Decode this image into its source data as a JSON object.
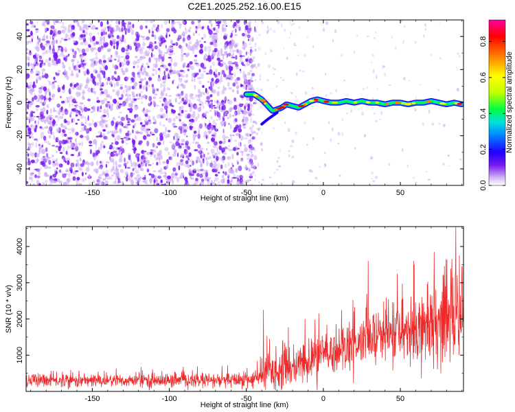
{
  "figure_title": "C2E1.2025.252.16.00.E15",
  "colors": {
    "spectrogram_scatter": "#7a1cf0",
    "spectrogram_faint": "#c7a6f5",
    "snr_line": "#ee2a2a",
    "axis": "#000000"
  },
  "chart_data": [
    {
      "type": "heatmap",
      "name": "spectrogram",
      "xlabel": "Height of straight line (km)",
      "ylabel": "Frequency (Hz)",
      "xlim": [
        -193,
        91
      ],
      "ylim": [
        -50,
        50
      ],
      "xticks": [
        -150,
        -100,
        -50,
        0,
        50
      ],
      "xtick_labels": [
        "-150",
        "-100",
        "-50",
        "0",
        "50"
      ],
      "yticks": [
        -40,
        -20,
        0,
        20,
        40
      ],
      "ytick_labels": [
        "-40",
        "-20",
        "0",
        "20",
        "40"
      ],
      "colorbar": {
        "label": "Normalized spectral amplitude",
        "range": [
          0,
          0.92
        ],
        "ticks": [
          0.0,
          0.2,
          0.4,
          0.6,
          0.8
        ],
        "tick_labels": [
          "0.0",
          "0.2",
          "0.4",
          "0.6",
          "0.8"
        ],
        "colormap": [
          "#ffffff",
          "#d9c2f7",
          "#7a1cf0",
          "#2000ff",
          "#0080ff",
          "#00e0e0",
          "#00ff40",
          "#c0ff00",
          "#ffff00",
          "#ff8000",
          "#ff0000",
          "#ff00a0"
        ]
      },
      "noise_region_x": [
        -193,
        -50
      ],
      "tone_track": [
        [
          -50,
          5
        ],
        [
          -45,
          5
        ],
        [
          -40,
          2
        ],
        [
          -36,
          -2
        ],
        [
          -33,
          -5
        ],
        [
          -30,
          -4
        ],
        [
          -27,
          -3
        ],
        [
          -24,
          -1
        ],
        [
          -20,
          -2
        ],
        [
          -16,
          -3
        ],
        [
          -12,
          -1
        ],
        [
          -8,
          1
        ],
        [
          -4,
          2
        ],
        [
          0,
          1
        ],
        [
          5,
          0
        ],
        [
          10,
          0
        ],
        [
          15,
          1
        ],
        [
          20,
          0
        ],
        [
          25,
          1
        ],
        [
          30,
          0
        ],
        [
          35,
          0
        ],
        [
          40,
          -1
        ],
        [
          45,
          0
        ],
        [
          50,
          0
        ],
        [
          55,
          -1
        ],
        [
          60,
          0
        ],
        [
          65,
          0
        ],
        [
          70,
          1
        ],
        [
          75,
          0
        ],
        [
          80,
          -1
        ],
        [
          85,
          0
        ],
        [
          90,
          -1
        ]
      ]
    },
    {
      "type": "line",
      "name": "snr",
      "xlabel": "Height of straight line (km)",
      "ylabel": "SNR (10 * v/v)",
      "xlim": [
        -193,
        91
      ],
      "ylim": [
        0,
        4550
      ],
      "xticks": [
        -150,
        -100,
        -50,
        0,
        50
      ],
      "xtick_labels": [
        "-150",
        "-100",
        "-50",
        "0",
        "50"
      ],
      "yticks": [
        1000,
        2000,
        3000,
        4000
      ],
      "ytick_labels": [
        "1000",
        "2000",
        "3000",
        "4000"
      ],
      "envelope": {
        "x": [
          -193,
          -150,
          -100,
          -60,
          -45,
          -40,
          -38,
          -35,
          -30,
          -20,
          -10,
          0,
          10,
          20,
          30,
          40,
          50,
          60,
          70,
          80,
          85,
          88,
          91
        ],
        "baseline": [
          300,
          300,
          300,
          300,
          330,
          420,
          500,
          560,
          600,
          650,
          800,
          1000,
          1150,
          1250,
          1450,
          1550,
          1600,
          1750,
          1850,
          1950,
          2100,
          2200,
          2200
        ],
        "spread": [
          230,
          230,
          230,
          250,
          280,
          350,
          650,
          700,
          650,
          650,
          700,
          750,
          750,
          800,
          850,
          950,
          1050,
          1150,
          1250,
          1350,
          1500,
          1600,
          1600
        ]
      },
      "spikes": [
        [
          -39,
          2250
        ],
        [
          -35,
          1450
        ],
        [
          -12,
          2000
        ],
        [
          -3,
          2150
        ],
        [
          28,
          2300
        ],
        [
          48,
          3250
        ],
        [
          59,
          3500
        ],
        [
          64,
          2600
        ],
        [
          72,
          3850
        ],
        [
          78,
          3200
        ],
        [
          86,
          4550
        ],
        [
          88,
          1700
        ],
        [
          90,
          3450
        ]
      ]
    }
  ]
}
